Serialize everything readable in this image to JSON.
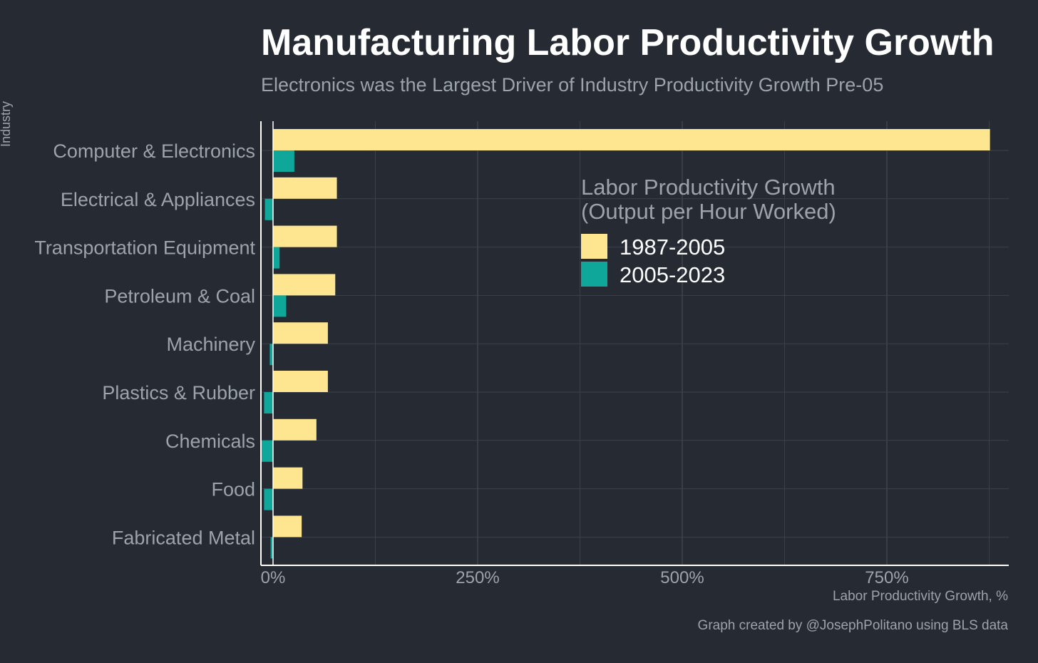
{
  "chart_data": {
    "type": "bar",
    "orientation": "horizontal",
    "title": "Manufacturing Labor Productivity Growth",
    "subtitle": "Electronics was the Largest Driver of Industry Productivity Growth Pre-05",
    "ylabel": "Industry",
    "xlabel": "Labor Productivity Growth, %",
    "caption": "Graph created by @JosephPolitano using BLS data",
    "categories": [
      "Computer & Electronics",
      "Electrical & Appliances",
      "Transportation Equipment",
      "Petroleum & Coal",
      "Machinery",
      "Plastics & Rubber",
      "Chemicals",
      "Food",
      "Fabricated Metal"
    ],
    "series": [
      {
        "name": "1987-2005",
        "color": "#fde68f",
        "values": [
          876,
          78,
          78,
          76,
          67,
          67,
          53,
          36,
          35
        ]
      },
      {
        "name": "2005-2023",
        "color": "#0ea79a",
        "values": [
          26,
          -10,
          8,
          16,
          -4,
          -11,
          -14,
          -11,
          -3
        ]
      }
    ],
    "xlim": [
      -15,
      900
    ],
    "xticks": [
      0,
      250,
      500,
      750
    ],
    "xtick_labels": [
      "0%",
      "250%",
      "500%",
      "750%"
    ],
    "grid": true,
    "legend": {
      "title_line1": "Labor Productivity Growth",
      "title_line2": "(Output per Hour Worked)",
      "placement": "upper-center-right"
    }
  }
}
